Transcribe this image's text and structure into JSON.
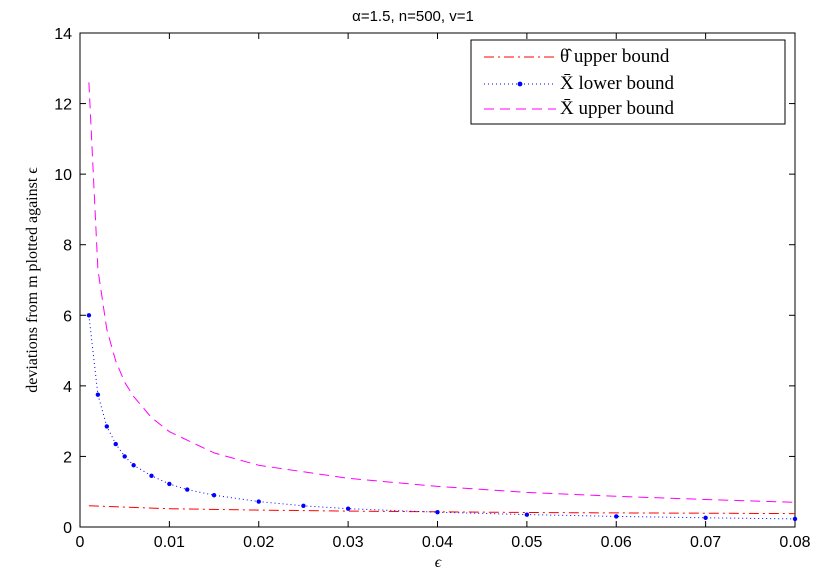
{
  "chart_data": {
    "type": "line",
    "title": "α=1.5, n=500, v=1",
    "xlabel": "ϵ",
    "ylabel": "deviations from m plotted against ϵ",
    "xlim": [
      0,
      0.08
    ],
    "ylim": [
      0,
      14
    ],
    "xticks": [
      "0",
      "0.01",
      "0.02",
      "0.03",
      "0.04",
      "0.05",
      "0.06",
      "0.07",
      "0.08"
    ],
    "yticks": [
      "0",
      "2",
      "4",
      "6",
      "8",
      "10",
      "12",
      "14"
    ],
    "grid": false,
    "legend_position": "top-right",
    "series": [
      {
        "name": "θ̂ upper bound",
        "color": "#ff0000",
        "style": "dash-dot",
        "x": [
          0.001,
          0.01,
          0.02,
          0.03,
          0.04,
          0.05,
          0.06,
          0.07,
          0.08
        ],
        "y": [
          0.6,
          0.52,
          0.48,
          0.45,
          0.43,
          0.41,
          0.4,
          0.39,
          0.38
        ]
      },
      {
        "name": "X̄ lower bound",
        "color": "#0000ff",
        "style": "dotted-markers",
        "x": [
          0.001,
          0.002,
          0.003,
          0.004,
          0.005,
          0.006,
          0.008,
          0.01,
          0.012,
          0.015,
          0.02,
          0.025,
          0.03,
          0.04,
          0.05,
          0.06,
          0.07,
          0.08
        ],
        "y": [
          6.0,
          3.75,
          2.85,
          2.35,
          2.0,
          1.75,
          1.45,
          1.22,
          1.06,
          0.9,
          0.72,
          0.6,
          0.52,
          0.42,
          0.35,
          0.3,
          0.26,
          0.23
        ]
      },
      {
        "name": "X̄ upper bound",
        "color": "#ff00ff",
        "style": "dashed",
        "x": [
          0.001,
          0.002,
          0.003,
          0.004,
          0.005,
          0.006,
          0.008,
          0.01,
          0.015,
          0.02,
          0.03,
          0.04,
          0.05,
          0.06,
          0.07,
          0.08
        ],
        "y": [
          12.6,
          7.3,
          5.6,
          4.7,
          4.1,
          3.7,
          3.1,
          2.7,
          2.1,
          1.75,
          1.38,
          1.15,
          0.98,
          0.87,
          0.78,
          0.7
        ]
      }
    ]
  }
}
